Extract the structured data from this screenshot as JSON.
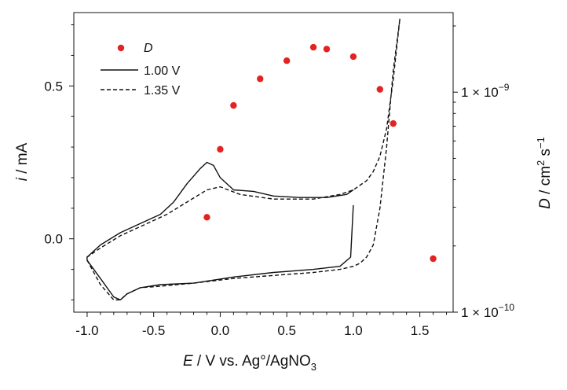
{
  "chart_data": {
    "type": "line",
    "x_axis": {
      "label_italic": "E",
      "label_rest": " / V vs. Ag°/AgNO",
      "label_sub": "3",
      "range": [
        -1.1,
        1.75
      ],
      "ticks": [
        -1.0,
        -0.5,
        0.0,
        0.5,
        1.0,
        1.5
      ],
      "tick_labels": [
        "-1.0",
        "-0.5",
        "0.0",
        "0.5",
        "1.0",
        "1.5"
      ]
    },
    "y_left": {
      "label_italic": "i",
      "label_rest": " / mA",
      "range": [
        -0.24,
        0.74
      ],
      "ticks": [
        0.0,
        0.5
      ],
      "tick_labels": [
        "0.0",
        "0.5"
      ]
    },
    "y_right": {
      "label_italic": "D",
      "label_rest": " / cm",
      "label_sup1": "2",
      "label_mid": " s",
      "label_sup2": "−1",
      "scale": "log",
      "range": [
        1e-10,
        2.3e-09
      ],
      "tick_labels": [
        {
          "value": 1e-10,
          "mantissa": "1 × 10",
          "exponent": "−10"
        },
        {
          "value": 1e-09,
          "mantissa": "1 × 10",
          "exponent": "−9"
        }
      ]
    },
    "legend": {
      "placement": "top-left",
      "entries": [
        {
          "label": "D",
          "marker": "dot"
        },
        {
          "label": "1.00 V",
          "style": "solid"
        },
        {
          "label": "1.35 V",
          "style": "dashed"
        }
      ]
    },
    "series": [
      {
        "name": "1.00 V",
        "axis": "left",
        "style": "solid",
        "x": [
          1.0,
          0.98,
          0.9,
          0.7,
          0.4,
          0.1,
          -0.2,
          -0.45,
          -0.6,
          -0.7,
          -0.75,
          -0.8,
          -0.9,
          -1.0,
          -1.0,
          -0.9,
          -0.75,
          -0.6,
          -0.45,
          -0.35,
          -0.25,
          -0.15,
          -0.1,
          -0.05,
          0.0,
          0.1,
          0.25,
          0.4,
          0.6,
          0.8,
          0.95,
          1.0
        ],
        "y": [
          0.11,
          -0.06,
          -0.09,
          -0.1,
          -0.11,
          -0.125,
          -0.145,
          -0.15,
          -0.16,
          -0.18,
          -0.2,
          -0.19,
          -0.13,
          -0.07,
          -0.06,
          -0.02,
          0.02,
          0.05,
          0.08,
          0.12,
          0.18,
          0.23,
          0.25,
          0.24,
          0.2,
          0.16,
          0.155,
          0.14,
          0.135,
          0.135,
          0.145,
          0.16
        ]
      },
      {
        "name": "1.35 V",
        "axis": "left",
        "style": "dashed",
        "x": [
          1.35,
          1.3,
          1.25,
          1.2,
          1.15,
          1.1,
          1.05,
          1.0,
          0.9,
          0.7,
          0.4,
          0.1,
          -0.2,
          -0.45,
          -0.6,
          -0.7,
          -0.75,
          -0.8,
          -0.9,
          -1.0,
          -1.0,
          -0.9,
          -0.75,
          -0.55,
          -0.4,
          -0.25,
          -0.1,
          0.0,
          0.15,
          0.4,
          0.7,
          0.9,
          1.0,
          1.1,
          1.15,
          1.2,
          1.25,
          1.3,
          1.35
        ],
        "y": [
          0.72,
          0.55,
          0.3,
          0.1,
          -0.02,
          -0.06,
          -0.08,
          -0.09,
          -0.1,
          -0.11,
          -0.12,
          -0.13,
          -0.145,
          -0.155,
          -0.16,
          -0.18,
          -0.2,
          -0.2,
          -0.15,
          -0.07,
          -0.06,
          -0.03,
          0.01,
          0.05,
          0.08,
          0.12,
          0.16,
          0.17,
          0.145,
          0.13,
          0.13,
          0.145,
          0.16,
          0.19,
          0.22,
          0.27,
          0.36,
          0.52,
          0.72
        ]
      },
      {
        "name": "D",
        "axis": "right",
        "type": "scatter",
        "color": "#e32222",
        "x": [
          -0.1,
          0.0,
          0.1,
          0.3,
          0.5,
          0.7,
          0.8,
          1.0,
          1.2,
          1.3,
          1.6
        ],
        "y": [
          2.7e-10,
          5.5e-10,
          8.7e-10,
          1.15e-09,
          1.39e-09,
          1.6e-09,
          1.57e-09,
          1.45e-09,
          1.03e-09,
          7.2e-10,
          1.75e-10
        ]
      }
    ],
    "grid": false
  }
}
